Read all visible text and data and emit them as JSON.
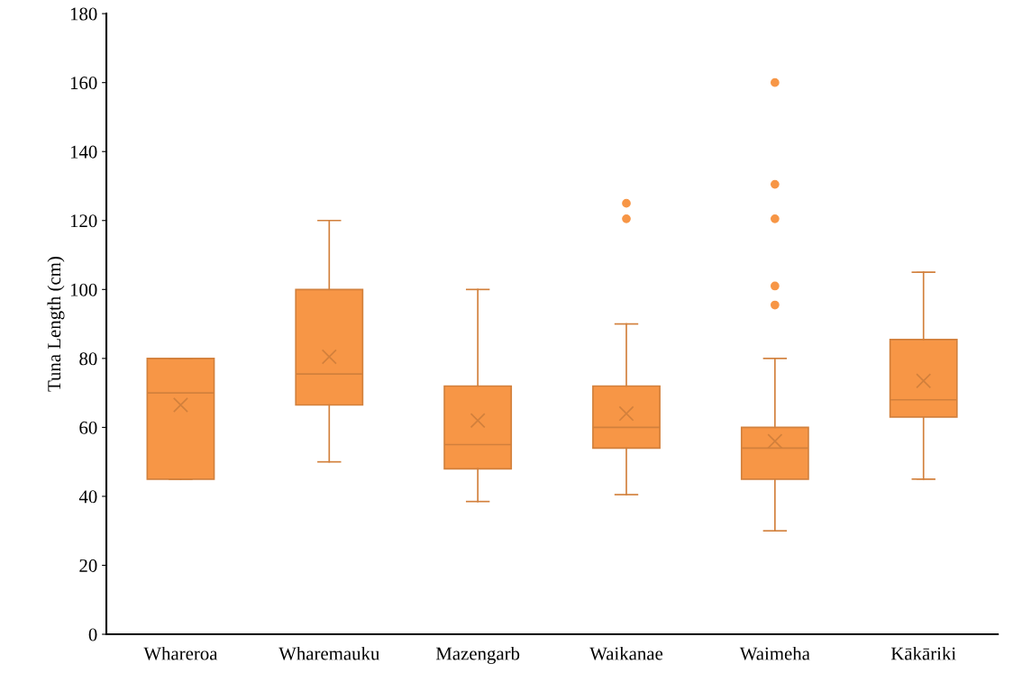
{
  "chart_data": {
    "type": "box",
    "ylabel": "Tuna Length (cm)",
    "categories": [
      "Whareroa",
      "Wharemauku",
      "Mazengarb",
      "Waikanae",
      "Waimeha",
      "Kākāriki"
    ],
    "series": [
      {
        "color": "#f79646",
        "boxes": [
          {
            "low": 45,
            "q1": 45,
            "median": 70,
            "q3": 80,
            "high": 80,
            "mean": 66.5
          },
          {
            "low": 50,
            "q1": 66.5,
            "median": 75.5,
            "q3": 100,
            "high": 120,
            "mean": 80.5
          },
          {
            "low": 38.5,
            "q1": 48,
            "median": 55,
            "q3": 72,
            "high": 100,
            "mean": 62
          },
          {
            "low": 40.5,
            "q1": 54,
            "median": 60,
            "q3": 72,
            "high": 90,
            "mean": 64,
            "outliers": [
              120.5,
              125
            ]
          },
          {
            "low": 30,
            "q1": 45,
            "median": 54,
            "q3": 60,
            "high": 80,
            "mean": 56,
            "outliers": [
              95.5,
              101,
              120.5,
              130.5,
              160
            ]
          },
          {
            "low": 45,
            "q1": 63,
            "median": 68,
            "q3": 85.5,
            "high": 105,
            "mean": 73.5
          }
        ]
      }
    ],
    "ylim": [
      0,
      180
    ],
    "yticks": [
      0,
      20,
      40,
      60,
      80,
      100,
      120,
      140,
      160,
      180
    ],
    "grid": false,
    "legend": false
  }
}
